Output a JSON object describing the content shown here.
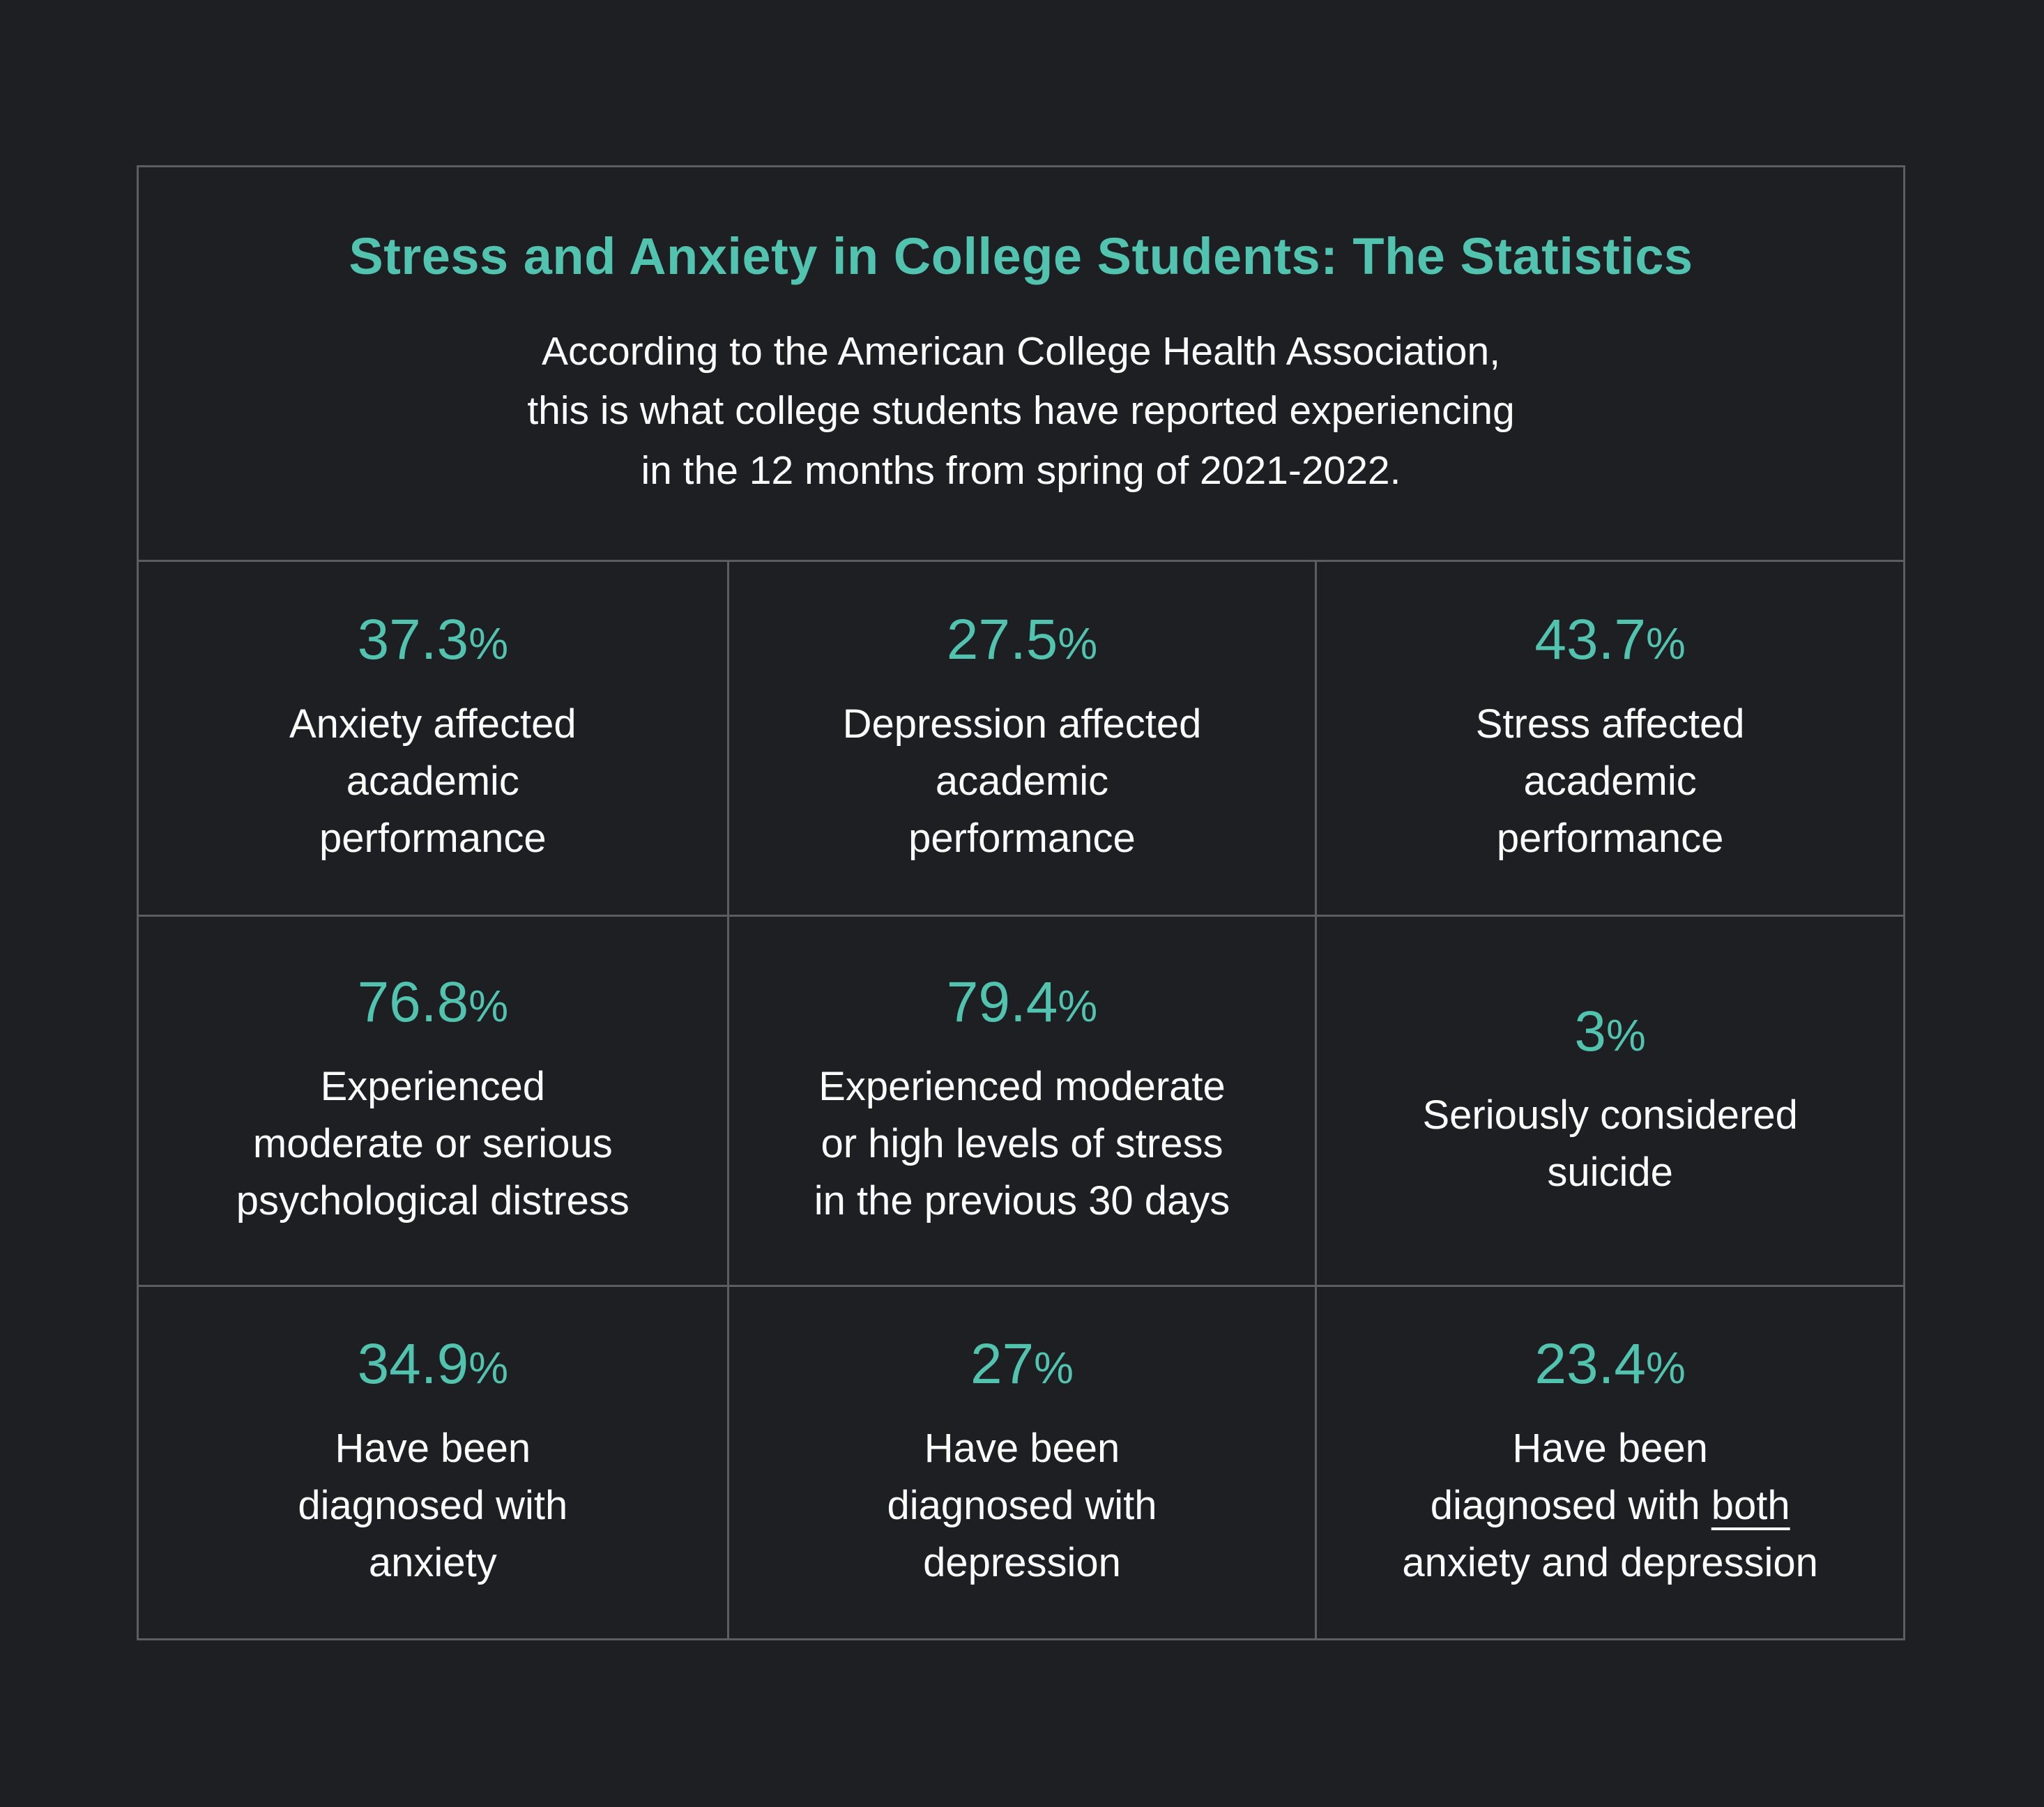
{
  "colors": {
    "background": "#1d1f23",
    "accent_teal": "#52c3ae",
    "text_white": "#fdfdfd",
    "grid_border": "#5b5e61"
  },
  "header": {
    "title": "Stress and Anxiety in College Students: The Statistics",
    "subtitle_lines": [
      "According to the American College Health Association,",
      "this is what college students have reported experiencing",
      "in the 12 months from spring of 2021-2022."
    ]
  },
  "stats": [
    {
      "value": "37.3",
      "suffix": "%",
      "lines": [
        "Anxiety affected",
        "academic",
        "performance"
      ]
    },
    {
      "value": "27.5",
      "suffix": "%",
      "lines": [
        "Depression affected",
        "academic",
        "performance"
      ]
    },
    {
      "value": "43.7",
      "suffix": "%",
      "lines": [
        "Stress affected",
        "academic",
        "performance"
      ]
    },
    {
      "value": "76.8",
      "suffix": "%",
      "lines": [
        "Experienced",
        "moderate or serious",
        "psychological distress"
      ]
    },
    {
      "value": "79.4",
      "suffix": "%",
      "lines": [
        "Experienced moderate",
        "or high levels of stress",
        "in the previous 30 days"
      ]
    },
    {
      "value": "3",
      "suffix": "%",
      "lines": [
        "Seriously considered",
        "suicide"
      ]
    },
    {
      "value": "34.9",
      "suffix": "%",
      "lines": [
        "Have been",
        "diagnosed with",
        "anxiety"
      ]
    },
    {
      "value": "27",
      "suffix": "%",
      "lines": [
        "Have been",
        "diagnosed with",
        "depression"
      ]
    },
    {
      "value": "23.4",
      "suffix": "%",
      "lines": [
        "Have been"
      ],
      "line2": {
        "prefix": "diagnosed with ",
        "underlined": "both"
      },
      "line3": "anxiety and depression"
    }
  ],
  "chart_data": {
    "type": "table",
    "title": "Stress and Anxiety in College Students: The Statistics",
    "subtitle": "According to the American College Health Association, this is what college students have reported experiencing in the 12 months from spring of 2021-2022.",
    "layout": "3x3 grid of statistics",
    "values": [
      {
        "percent": 37.3,
        "label": "Anxiety affected academic performance"
      },
      {
        "percent": 27.5,
        "label": "Depression affected academic performance"
      },
      {
        "percent": 43.7,
        "label": "Stress affected academic performance"
      },
      {
        "percent": 76.8,
        "label": "Experienced moderate or serious psychological distress"
      },
      {
        "percent": 79.4,
        "label": "Experienced moderate or high levels of stress in the previous 30 days"
      },
      {
        "percent": 3,
        "label": "Seriously considered suicide"
      },
      {
        "percent": 34.9,
        "label": "Have been diagnosed with anxiety"
      },
      {
        "percent": 27,
        "label": "Have been diagnosed with depression"
      },
      {
        "percent": 23.4,
        "label": "Have been diagnosed with both anxiety and depression"
      }
    ]
  }
}
